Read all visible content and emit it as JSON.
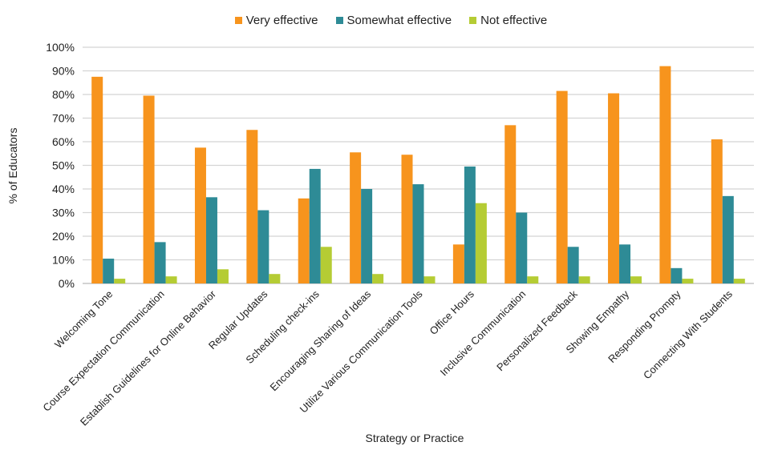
{
  "chart_data": {
    "type": "bar",
    "title": "",
    "xlabel": "Strategy or Practice",
    "ylabel": "% of Educators",
    "ylim": [
      0,
      100
    ],
    "yticks": [
      "0%",
      "10%",
      "20%",
      "30%",
      "40%",
      "50%",
      "60%",
      "70%",
      "80%",
      "90%",
      "100%"
    ],
    "grid": true,
    "legend_position": "top-center",
    "categories": [
      "Welcoming Tone",
      "Course Expectation Communication",
      "Establish Guidelines for Online Behavior",
      "Regular Updates",
      "Scheduling check-ins",
      "Encouraging Sharing of Ideas",
      "Utilize Various Communication Tools",
      "Office Hours",
      "Inclusive Communication",
      "Personalized Feedback",
      "Showing Empathy",
      "Responding Prompty",
      "Connecting With Students"
    ],
    "series": [
      {
        "name": "Very effective",
        "color": "#F7941D",
        "values": [
          87.5,
          79.5,
          57.5,
          65,
          36,
          55.5,
          54.5,
          16.5,
          67,
          81.5,
          80.5,
          92,
          61
        ]
      },
      {
        "name": "Somewhat effective",
        "color": "#2E8B96",
        "values": [
          10.5,
          17.5,
          36.5,
          31,
          48.5,
          40,
          42,
          49.5,
          30,
          15.5,
          16.5,
          6.5,
          37
        ]
      },
      {
        "name": "Not effective",
        "color": "#B5CC34",
        "values": [
          2,
          3,
          6,
          4,
          15.5,
          4,
          3,
          34,
          3,
          3,
          3,
          2,
          2
        ]
      }
    ]
  }
}
